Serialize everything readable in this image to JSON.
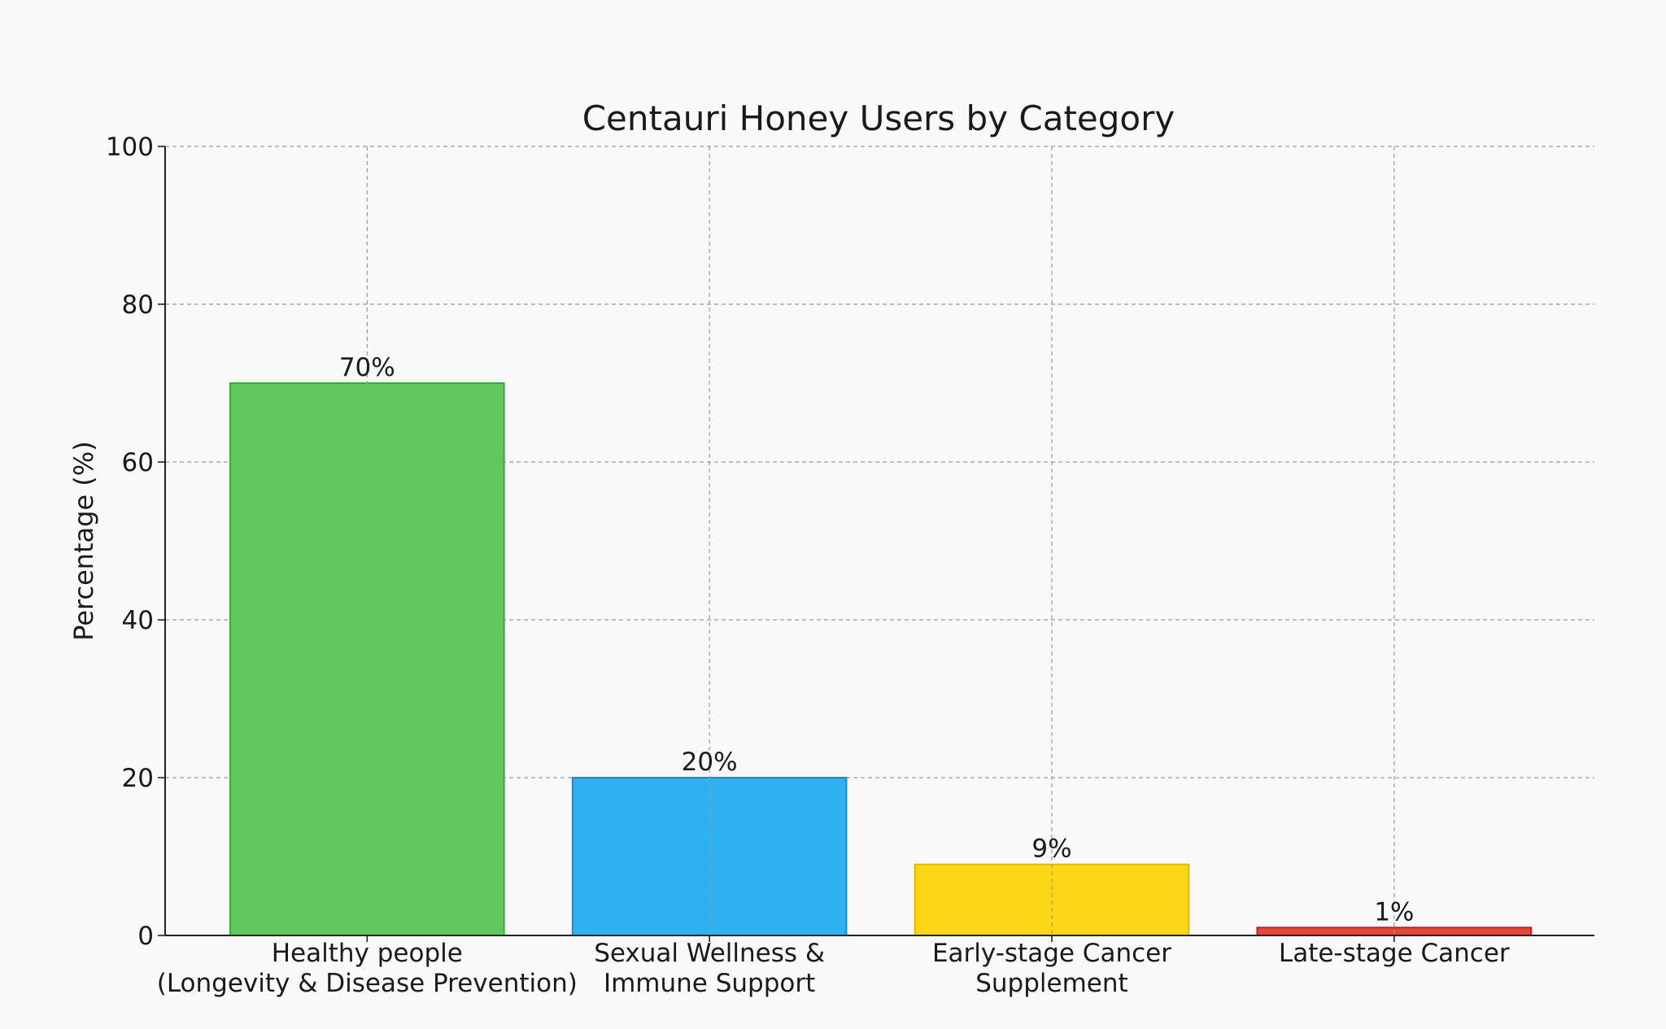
{
  "chart_data": {
    "type": "bar",
    "title": "Centauri Honey Users by Category",
    "xlabel": "",
    "ylabel": "Percentage (%)",
    "ylim": [
      0,
      100
    ],
    "yticks": [
      0,
      20,
      40,
      60,
      80,
      100
    ],
    "ytick_labels": [
      "0",
      "20",
      "40",
      "60",
      "80",
      "100"
    ],
    "grid": true,
    "categories": [
      [
        "Healthy people",
        "(Longevity & Disease Prevention)"
      ],
      [
        "Sexual Wellness &",
        "Immune Support"
      ],
      [
        "Early-stage Cancer",
        "Supplement"
      ],
      [
        "Late-stage Cancer"
      ]
    ],
    "values": [
      70,
      20,
      9,
      1
    ],
    "data_labels": [
      "70%",
      "20%",
      "9%",
      "1%"
    ],
    "colors": [
      "#60c75c",
      "#2db1f0",
      "#fdd716",
      "#e8453b"
    ],
    "edge_colors": [
      "#44a540",
      "#1a8ec9",
      "#e0b800",
      "#b8261f"
    ]
  }
}
